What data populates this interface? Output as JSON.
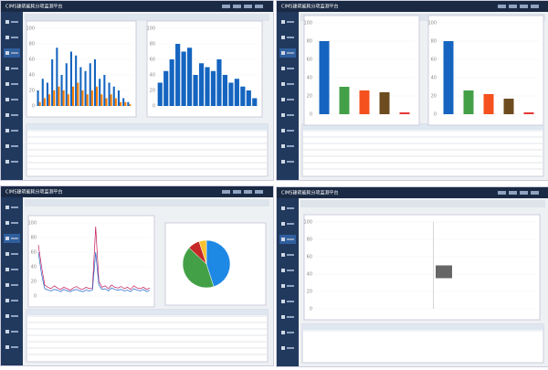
{
  "screens": [
    {
      "header": {
        "title": "CIMS建筑能耗分项监测平台"
      },
      "charts": [
        {
          "type": "bar",
          "ylim": [
            0,
            100
          ],
          "yticks": [
            0,
            20,
            40,
            60,
            80,
            100
          ],
          "series": [
            {
              "color": "#1565c0",
              "values": [
                20,
                35,
                30,
                60,
                75,
                40,
                55,
                70,
                65,
                50,
                45,
                55,
                60,
                35,
                40,
                30,
                25,
                20,
                10,
                5
              ]
            },
            {
              "color": "#f57c00",
              "values": [
                5,
                10,
                15,
                20,
                25,
                20,
                15,
                25,
                30,
                20,
                15,
                20,
                25,
                15,
                10,
                15,
                10,
                5,
                5,
                2
              ]
            }
          ]
        },
        {
          "type": "bar",
          "ylim": [
            0,
            100
          ],
          "yticks": [
            0,
            20,
            40,
            60,
            80,
            100
          ],
          "series": [
            {
              "color": "#1565c0",
              "values": [
                30,
                45,
                60,
                80,
                70,
                75,
                40,
                55,
                50,
                45,
                60,
                40,
                30,
                35,
                25,
                20,
                10
              ]
            }
          ]
        }
      ]
    },
    {
      "header": {
        "title": "CIMS建筑能耗分项监测平台"
      },
      "charts": [
        {
          "type": "bar",
          "ylim": [
            0,
            100
          ],
          "yticks": [
            0,
            20,
            40,
            60,
            80,
            100
          ],
          "colors": [
            "#1565c0",
            "#43a047",
            "#f4511e",
            "#6d4c1f",
            "#e53935"
          ],
          "values": [
            80,
            30,
            26,
            24,
            2
          ]
        },
        {
          "type": "bar",
          "ylim": [
            0,
            100
          ],
          "yticks": [
            0,
            20,
            40,
            60,
            80,
            100
          ],
          "colors": [
            "#1565c0",
            "#43a047",
            "#f4511e",
            "#6d4c1f",
            "#e53935"
          ],
          "values": [
            80,
            26,
            22,
            17,
            2
          ]
        }
      ]
    },
    {
      "header": {
        "title": "CIMS建筑能耗分项监测平台"
      },
      "charts": [
        {
          "type": "line",
          "ylim": [
            0,
            100
          ],
          "yticks": [
            0,
            20,
            40,
            60,
            80,
            100
          ],
          "series": [
            {
              "color": "#c2185b",
              "values": [
                70,
                40,
                15,
                12,
                10,
                14,
                11,
                9,
                12,
                10,
                8,
                11,
                13,
                10,
                9,
                12,
                10,
                11,
                95,
                20,
                12,
                14,
                10,
                15,
                12,
                11,
                13,
                10,
                12,
                9,
                14,
                11,
                10,
                12,
                9,
                11
              ]
            },
            {
              "color": "#1e63c8",
              "values": [
                60,
                30,
                10,
                8,
                7,
                9,
                8,
                6,
                9,
                7,
                6,
                8,
                9,
                7,
                6,
                8,
                7,
                8,
                60,
                15,
                9,
                10,
                7,
                11,
                9,
                8,
                9,
                7,
                8,
                6,
                10,
                8,
                7,
                9,
                6,
                8
              ]
            }
          ]
        },
        {
          "type": "pie",
          "values": [
            45,
            42,
            8,
            5
          ],
          "colors": [
            "#1e88e5",
            "#43a047",
            "#c62828",
            "#fbc02d"
          ]
        }
      ]
    },
    {
      "header": {
        "title": "CIMS建筑能耗分项监测平台"
      },
      "charts": [
        {
          "type": "empty",
          "ylim": [
            0,
            100
          ],
          "yticks": [
            0,
            20,
            40,
            60,
            80,
            100
          ]
        }
      ]
    }
  ]
}
